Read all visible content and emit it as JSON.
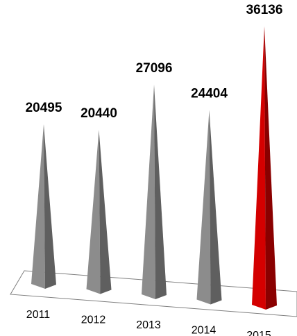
{
  "chart_data": {
    "type": "bar",
    "categories": [
      "2011",
      "2012",
      "2013",
      "2014",
      "2015"
    ],
    "values": [
      20495,
      20440,
      27096,
      24404,
      36136
    ],
    "ylim": [
      0,
      36136
    ],
    "grid": false,
    "legend": "none",
    "colors": {
      "default_bar": "#8c8c8c",
      "default_bar_shade": "#5f5f5f",
      "highlight_bar": "#d40000",
      "highlight_bar_shade": "#8a0000",
      "floor_stroke": "#7f7f7f"
    },
    "highlight_category": "2015"
  }
}
